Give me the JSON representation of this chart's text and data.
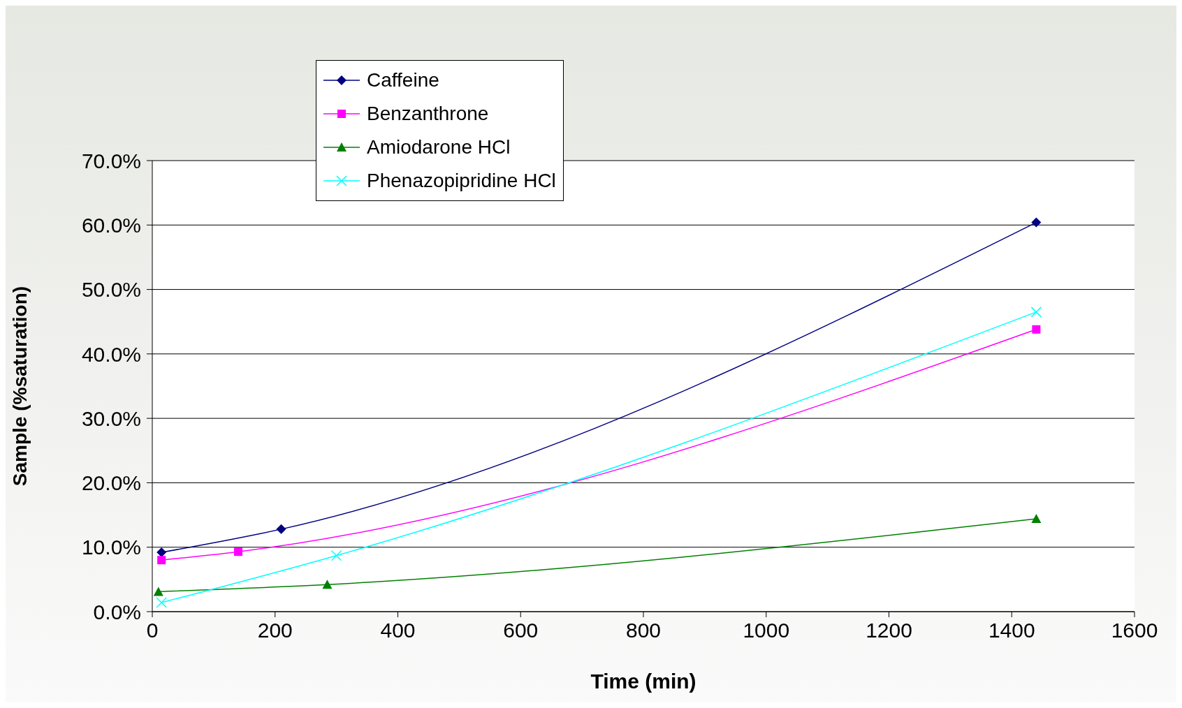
{
  "chart_data": {
    "type": "line",
    "xlabel": "Time (min)",
    "ylabel": "Sample (%saturation)",
    "xlim": [
      0,
      1600
    ],
    "xticks": [
      0,
      200,
      400,
      600,
      800,
      1000,
      1200,
      1400,
      1600
    ],
    "ylim": [
      0,
      70
    ],
    "yticks": [
      {
        "value": 0,
        "label": "0.0%"
      },
      {
        "value": 10,
        "label": "10.0%"
      },
      {
        "value": 20,
        "label": "20.0%"
      },
      {
        "value": 30,
        "label": "30.0%"
      },
      {
        "value": 40,
        "label": "40.0%"
      },
      {
        "value": 50,
        "label": "50.0%"
      },
      {
        "value": 60,
        "label": "60.0%"
      },
      {
        "value": 70,
        "label": "70.0%"
      }
    ],
    "grid": "y",
    "legend": "top left",
    "series": [
      {
        "name": "Caffeine",
        "color": "#000080",
        "marker": "diamond",
        "x": [
          15,
          210,
          1440
        ],
        "values": [
          9.2,
          12.8,
          60.4
        ]
      },
      {
        "name": "Benzanthrone",
        "color": "#ff00ff",
        "marker": "square",
        "x": [
          15,
          140,
          1440
        ],
        "values": [
          8.0,
          9.3,
          43.8
        ]
      },
      {
        "name": "Amiodarone HCl",
        "color": "#008000",
        "marker": "triangle",
        "x": [
          10,
          285,
          1440
        ],
        "values": [
          3.1,
          4.2,
          14.4
        ]
      },
      {
        "name": "Phenazopipridine HCl",
        "color": "#00ffff",
        "marker": "cross",
        "x": [
          15,
          300,
          1440
        ],
        "values": [
          1.4,
          8.7,
          46.5
        ]
      }
    ]
  }
}
